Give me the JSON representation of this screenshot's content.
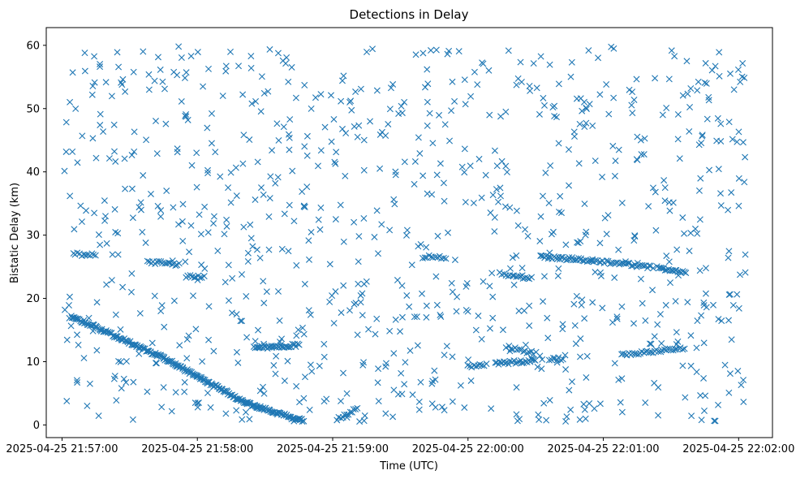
{
  "chart_data": {
    "type": "scatter",
    "title": "Detections in Delay",
    "xlabel": "Time (UTC)",
    "ylabel": "Bistatic Delay (km)",
    "x_start": "2025-04-25 21:56:53",
    "x_end": "2025-04-25 22:02:15",
    "xlim": [
      -7,
      315
    ],
    "ylim": [
      -2.0,
      62.8
    ],
    "grid": false,
    "marker": "x",
    "color": "#1f77b4",
    "x_ticks": [
      {
        "value": 0,
        "label": "2025-04-25 21:57:00"
      },
      {
        "value": 60,
        "label": "2025-04-25 21:58:00"
      },
      {
        "value": 120,
        "label": "2025-04-25 21:59:00"
      },
      {
        "value": 180,
        "label": "2025-04-25 22:00:00"
      },
      {
        "value": 240,
        "label": "2025-04-25 22:01:00"
      },
      {
        "value": 300,
        "label": "2025-04-25 22:02:00"
      }
    ],
    "y_ticks": [
      0,
      10,
      20,
      30,
      40,
      50,
      60
    ],
    "tracks": [
      {
        "x0": 4,
        "y0": 17.2,
        "x1": 45,
        "y1": 10.6,
        "n": 90
      },
      {
        "x0": 45,
        "y0": 10.6,
        "x1": 82,
        "y1": 3.4,
        "n": 90
      },
      {
        "x0": 82,
        "y0": 3.4,
        "x1": 107,
        "y1": 0.6,
        "n": 60
      },
      {
        "x0": 122,
        "y0": 0.9,
        "x1": 131,
        "y1": 2.7,
        "n": 12
      },
      {
        "x0": 5,
        "y0": 27.0,
        "x1": 15,
        "y1": 26.8,
        "n": 12
      },
      {
        "x0": 38,
        "y0": 25.8,
        "x1": 52,
        "y1": 25.3,
        "n": 18
      },
      {
        "x0": 55,
        "y0": 23.5,
        "x1": 63,
        "y1": 23.4,
        "n": 10
      },
      {
        "x0": 85,
        "y0": 12.2,
        "x1": 105,
        "y1": 12.6,
        "n": 35
      },
      {
        "x0": 160,
        "y0": 26.6,
        "x1": 170,
        "y1": 26.5,
        "n": 12
      },
      {
        "x0": 180,
        "y0": 9.3,
        "x1": 188,
        "y1": 9.5,
        "n": 10
      },
      {
        "x0": 192,
        "y0": 9.7,
        "x1": 210,
        "y1": 10.2,
        "n": 25
      },
      {
        "x0": 198,
        "y0": 12.3,
        "x1": 210,
        "y1": 11.3,
        "n": 14
      },
      {
        "x0": 194,
        "y0": 23.9,
        "x1": 208,
        "y1": 23.3,
        "n": 16
      },
      {
        "x0": 216,
        "y0": 10.3,
        "x1": 222,
        "y1": 10.5,
        "n": 8
      },
      {
        "x0": 212,
        "y0": 26.6,
        "x1": 235,
        "y1": 26.0,
        "n": 35
      },
      {
        "x0": 235,
        "y0": 26.0,
        "x1": 262,
        "y1": 24.9,
        "n": 35
      },
      {
        "x0": 264,
        "y0": 24.8,
        "x1": 276,
        "y1": 24.2,
        "n": 18
      },
      {
        "x0": 248,
        "y0": 11.0,
        "x1": 276,
        "y1": 12.2,
        "n": 35
      }
    ],
    "noise_seed": 1337,
    "noise_count": 900
  }
}
